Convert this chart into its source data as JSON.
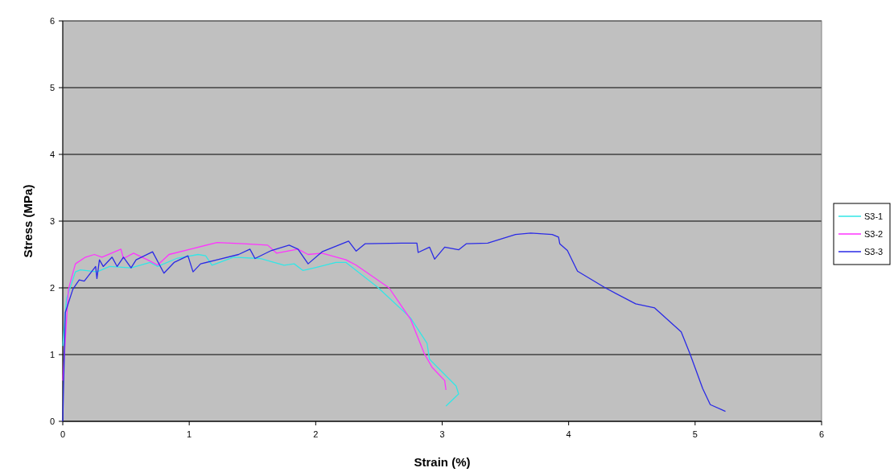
{
  "chart_data": {
    "type": "line",
    "xlabel": "Strain (%)",
    "ylabel": "Stress (MPa)",
    "xlim": [
      0,
      6
    ],
    "ylim": [
      0,
      6
    ],
    "xticks": [
      0,
      1,
      2,
      3,
      4,
      5,
      6
    ],
    "yticks": [
      0,
      1,
      2,
      3,
      4,
      5,
      6
    ],
    "grid": "y",
    "legend": "right",
    "marker": "none",
    "line_style": "solid",
    "series": [
      {
        "name": "S3-1",
        "color": "#33e6e6",
        "x": [
          0,
          0.03,
          0.1,
          0.14,
          0.27,
          0.37,
          0.54,
          0.69,
          0.75,
          0.9,
          1.07,
          1.13,
          1.18,
          1.35,
          1.56,
          1.75,
          1.83,
          1.9,
          1.99,
          2.16,
          2.24,
          2.49,
          2.75,
          2.88,
          2.9,
          3.11,
          3.13,
          3.03
        ],
        "values": [
          1.13,
          1.84,
          2.24,
          2.27,
          2.24,
          2.32,
          2.3,
          2.38,
          2.32,
          2.44,
          2.5,
          2.48,
          2.34,
          2.46,
          2.44,
          2.34,
          2.36,
          2.26,
          2.3,
          2.38,
          2.38,
          2.01,
          1.55,
          1.17,
          0.93,
          0.53,
          0.41,
          0.23
        ]
      },
      {
        "name": "S3-2",
        "color": "#ff33ff",
        "x": [
          0,
          0.045,
          0.1,
          0.18,
          0.25,
          0.31,
          0.46,
          0.48,
          0.56,
          0.67,
          0.75,
          0.84,
          1.01,
          1.22,
          1.43,
          1.62,
          1.69,
          1.86,
          1.94,
          2.05,
          2.24,
          2.32,
          2.58,
          2.75,
          2.86,
          2.92,
          3.02,
          3.03
        ],
        "values": [
          0.61,
          1.98,
          2.36,
          2.46,
          2.5,
          2.46,
          2.58,
          2.44,
          2.52,
          2.42,
          2.34,
          2.5,
          2.58,
          2.68,
          2.66,
          2.64,
          2.52,
          2.58,
          2.5,
          2.52,
          2.42,
          2.34,
          2.0,
          1.53,
          1.01,
          0.81,
          0.61,
          0.47
        ]
      },
      {
        "name": "S3-3",
        "color": "#2a2ae6",
        "x": [
          0,
          0.02,
          0.08,
          0.13,
          0.17,
          0.26,
          0.27,
          0.29,
          0.32,
          0.39,
          0.43,
          0.48,
          0.54,
          0.58,
          0.71,
          0.8,
          0.88,
          0.99,
          1.03,
          1.09,
          1.22,
          1.39,
          1.48,
          1.52,
          1.65,
          1.79,
          1.86,
          1.94,
          2.05,
          2.26,
          2.32,
          2.39,
          2.68,
          2.8,
          2.81,
          2.9,
          2.94,
          3.02,
          3.13,
          3.19,
          3.36,
          3.58,
          3.7,
          3.87,
          3.92,
          3.93,
          3.99,
          4.07,
          4.29,
          4.53,
          4.68,
          4.89,
          4.96,
          5.06,
          5.12,
          5.24
        ],
        "values": [
          0,
          1.63,
          1.98,
          2.12,
          2.1,
          2.32,
          2.14,
          2.42,
          2.32,
          2.46,
          2.32,
          2.46,
          2.3,
          2.42,
          2.54,
          2.22,
          2.38,
          2.48,
          2.24,
          2.36,
          2.42,
          2.5,
          2.58,
          2.44,
          2.56,
          2.64,
          2.58,
          2.36,
          2.54,
          2.7,
          2.55,
          2.66,
          2.67,
          2.67,
          2.53,
          2.61,
          2.43,
          2.61,
          2.57,
          2.66,
          2.67,
          2.8,
          2.82,
          2.8,
          2.76,
          2.66,
          2.56,
          2.25,
          2.0,
          1.76,
          1.7,
          1.34,
          1.01,
          0.49,
          0.25,
          0.15
        ]
      }
    ]
  }
}
